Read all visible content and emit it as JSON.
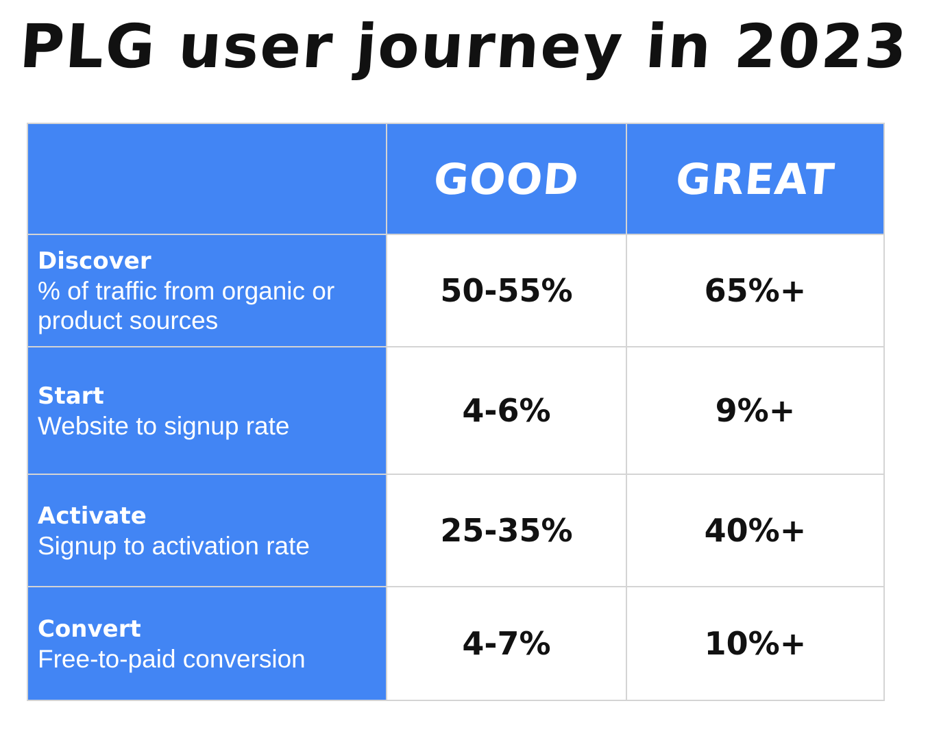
{
  "title": "PLG user journey in 2023",
  "table": {
    "headers": [
      "",
      "GOOD",
      "GREAT"
    ],
    "rows": [
      {
        "name": "Discover",
        "description": "% of traffic from organic or product sources",
        "good": "50-55%",
        "great": "65%+"
      },
      {
        "name": "Start",
        "description": "Website to signup rate",
        "good": "4-6%",
        "great": "9%+"
      },
      {
        "name": "Activate",
        "description": "Signup to activation rate",
        "good": "25-35%",
        "great": "40%+"
      },
      {
        "name": "Convert",
        "description": "Free-to-paid conversion",
        "good": "4-7%",
        "great": "10%+"
      }
    ]
  },
  "colors": {
    "accent_blue": "#4285f4",
    "text_dark": "#111111",
    "grid_line": "#d4d4d4"
  }
}
